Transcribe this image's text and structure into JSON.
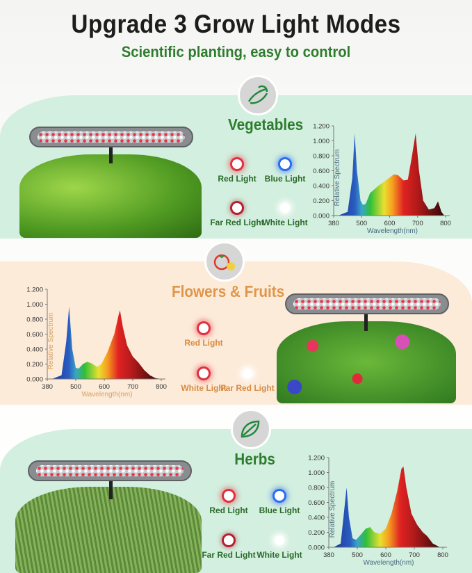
{
  "header": {
    "title": "Upgrade 3 Grow Light Modes",
    "subtitle": "Scientific planting, easy to control"
  },
  "colors": {
    "green_panel": "#d3efdf",
    "peach_panel": "#fcebd9",
    "green_text": "#2e7d2e",
    "orange_text": "#e0954a"
  },
  "sections": [
    {
      "title": "Vegetables",
      "icon": "lettuce-icon",
      "lights": [
        {
          "label": "Red Light",
          "color": "red"
        },
        {
          "label": "Blue Light",
          "color": "blue"
        },
        {
          "label": "Far Red Light",
          "color": "far-red"
        },
        {
          "label": "White Light",
          "color": "white"
        }
      ]
    },
    {
      "title": "Flowers & Fruits",
      "icon": "tomato-icon",
      "lights": [
        {
          "label": "Red Light",
          "color": "red"
        },
        {
          "label": "White Light",
          "color": "red"
        },
        {
          "label": "Far Red Light",
          "color": "white"
        }
      ]
    },
    {
      "title": "Herbs",
      "icon": "basil-leaf-icon",
      "lights": [
        {
          "label": "Red Light",
          "color": "red"
        },
        {
          "label": "Blue Light",
          "color": "blue"
        },
        {
          "label": "Far Red Light",
          "color": "far-red"
        },
        {
          "label": "White Light",
          "color": "white"
        }
      ]
    }
  ],
  "chart_data": [
    {
      "type": "area",
      "xlabel": "Wavelength(nm)",
      "ylabel": "Relative Spectrum",
      "xticks": [
        380,
        500,
        600,
        700,
        800
      ],
      "yticks": [
        "0.000",
        "0.200",
        "0.400",
        "0.600",
        "0.800",
        "1.000",
        "1.200"
      ],
      "ylim": [
        0,
        1.2
      ],
      "x": [
        400,
        440,
        460,
        470,
        480,
        495,
        505,
        515,
        530,
        560,
        590,
        615,
        630,
        650,
        665,
        680,
        693,
        705,
        720,
        740,
        760,
        773,
        785,
        795
      ],
      "y": [
        0,
        0.05,
        0.5,
        1.1,
        0.6,
        0.2,
        0.14,
        0.16,
        0.3,
        0.4,
        0.48,
        0.55,
        0.54,
        0.47,
        0.48,
        0.8,
        1.1,
        0.6,
        0.2,
        0.08,
        0.1,
        0.19,
        0.05,
        0
      ]
    },
    {
      "type": "area",
      "xlabel": "Wavelength(nm)",
      "ylabel": "Relative Spectrum",
      "xticks": [
        380,
        500,
        600,
        700,
        800
      ],
      "yticks": [
        "0.000",
        "0.200",
        "0.400",
        "0.600",
        "0.800",
        "1.000",
        "1.200"
      ],
      "ylim": [
        0,
        1.2
      ],
      "x": [
        400,
        440,
        460,
        472,
        485,
        500,
        510,
        525,
        540,
        555,
        575,
        590,
        610,
        635,
        650,
        655,
        665,
        680,
        700,
        720,
        740,
        760,
        780,
        800
      ],
      "y": [
        0,
        0.05,
        0.5,
        0.97,
        0.4,
        0.15,
        0.14,
        0.2,
        0.23,
        0.21,
        0.16,
        0.2,
        0.35,
        0.6,
        0.85,
        0.92,
        0.7,
        0.45,
        0.3,
        0.22,
        0.12,
        0.05,
        0.01,
        0
      ]
    },
    {
      "type": "area",
      "xlabel": "Wavelength(nm)",
      "ylabel": "Relative Spectrum",
      "xticks": [
        380,
        500,
        600,
        700,
        800
      ],
      "yticks": [
        "0.000",
        "0.200",
        "0.400",
        "0.600",
        "0.800",
        "1.000",
        "1.200"
      ],
      "ylim": [
        0,
        1.2
      ],
      "x": [
        400,
        430,
        445,
        455,
        465,
        480,
        495,
        510,
        530,
        545,
        560,
        580,
        600,
        620,
        640,
        655,
        662,
        672,
        690,
        710,
        730,
        745,
        765,
        790
      ],
      "y": [
        0,
        0.05,
        0.5,
        0.8,
        0.4,
        0.12,
        0.1,
        0.16,
        0.25,
        0.27,
        0.2,
        0.18,
        0.25,
        0.45,
        0.75,
        1.05,
        1.08,
        0.8,
        0.45,
        0.3,
        0.2,
        0.15,
        0.05,
        0
      ]
    }
  ]
}
